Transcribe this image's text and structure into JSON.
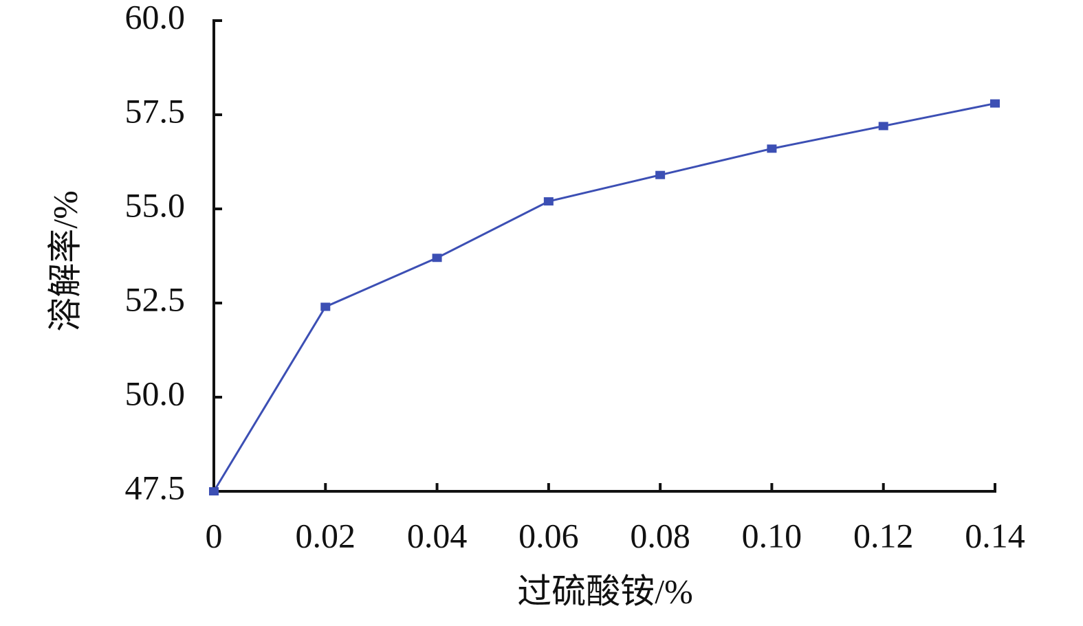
{
  "chart_data": {
    "type": "line",
    "x_label": "过硫酸铵/%",
    "y_label": "溶解率/%",
    "x": [
      0,
      0.02,
      0.04,
      0.06,
      0.08,
      0.1,
      0.12,
      0.14
    ],
    "values": [
      47.5,
      52.4,
      53.7,
      55.2,
      55.9,
      56.6,
      57.2,
      57.8
    ],
    "color": "#3c4fb4",
    "xlim": [
      0,
      0.14
    ],
    "xticks": [
      0,
      0.02,
      0.04,
      0.06,
      0.08,
      {
        "value": 0.1,
        "label": "0.10"
      },
      0.12,
      0.14
    ],
    "ylim": [
      47.5,
      60
    ],
    "yticks": [
      47.5,
      {
        "value": 50,
        "label": "50.0"
      },
      52.5,
      {
        "value": 55,
        "label": "55.0"
      },
      57.5,
      {
        "value": 60,
        "label": "60.0"
      }
    ],
    "grid": false
  }
}
